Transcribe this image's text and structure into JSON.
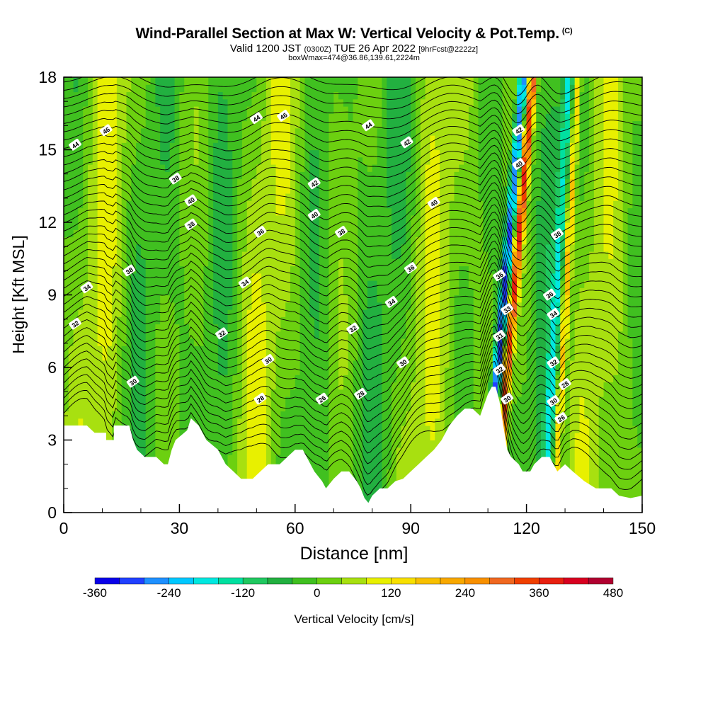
{
  "header": {
    "title": "Wind-Parallel Section at Max W: Vertical Velocity & Pot.Temp.",
    "copyright": "(C)",
    "valid_prefix": "Valid 1200 JST",
    "valid_utc": "(0300Z)",
    "valid_date": "TUE 26 Apr 2022",
    "forecast": "[9hrFcst@2222z]",
    "box_info": "boxWmax=474@36.86,139.61,2224m"
  },
  "chart_data": {
    "type": "heatmap",
    "xlabel": "Distance [nm]",
    "ylabel": "Height [Kft MSL]",
    "xlim": [
      0,
      150
    ],
    "ylim": [
      0,
      18
    ],
    "x_ticks": [
      "0",
      "30",
      "60",
      "90",
      "120",
      "150"
    ],
    "y_ticks": [
      "0",
      "3",
      "6",
      "9",
      "12",
      "15",
      "18"
    ],
    "terrain_kft": [
      [
        0,
        3.6
      ],
      [
        6,
        3.6
      ],
      [
        8,
        3.3
      ],
      [
        11,
        3.3
      ],
      [
        11,
        3.0
      ],
      [
        13,
        3.0
      ],
      [
        13,
        3.6
      ],
      [
        17,
        3.6
      ],
      [
        18,
        3.0
      ],
      [
        19,
        2.6
      ],
      [
        21,
        2.3
      ],
      [
        24,
        2.3
      ],
      [
        26,
        2.0
      ],
      [
        27,
        2.0
      ],
      [
        28,
        2.6
      ],
      [
        29,
        3.0
      ],
      [
        32,
        3.4
      ],
      [
        33,
        3.9
      ],
      [
        35,
        3.6
      ],
      [
        37,
        3.0
      ],
      [
        40,
        2.6
      ],
      [
        42,
        2.0
      ],
      [
        44,
        1.7
      ],
      [
        46,
        1.4
      ],
      [
        49,
        1.4
      ],
      [
        51,
        1.7
      ],
      [
        53,
        2.0
      ],
      [
        56,
        2.0
      ],
      [
        58,
        2.3
      ],
      [
        60,
        2.6
      ],
      [
        62,
        2.6
      ],
      [
        63,
        2.3
      ],
      [
        65,
        1.7
      ],
      [
        67,
        1.3
      ],
      [
        68,
        1.0
      ],
      [
        70,
        1.4
      ],
      [
        72,
        1.7
      ],
      [
        74,
        1.7
      ],
      [
        76,
        1.3
      ],
      [
        77,
        1.0
      ],
      [
        78,
        0.6
      ],
      [
        79,
        0.4
      ],
      [
        80,
        0.7
      ],
      [
        82,
        1.0
      ],
      [
        84,
        1.0
      ],
      [
        86,
        1.3
      ],
      [
        88,
        1.4
      ],
      [
        90,
        1.7
      ],
      [
        92,
        2.0
      ],
      [
        94,
        2.3
      ],
      [
        96,
        2.6
      ],
      [
        98,
        3.0
      ],
      [
        100,
        3.6
      ],
      [
        102,
        4.0
      ],
      [
        104,
        4.3
      ],
      [
        106,
        4.3
      ],
      [
        108,
        4.0
      ],
      [
        110,
        4.9
      ],
      [
        111,
        5.2
      ],
      [
        112,
        5.2
      ],
      [
        113,
        4.6
      ],
      [
        114,
        3.6
      ],
      [
        115,
        2.6
      ],
      [
        116,
        2.3
      ],
      [
        118,
        2.0
      ],
      [
        119,
        1.7
      ],
      [
        121,
        1.7
      ],
      [
        122,
        2.0
      ],
      [
        124,
        2.3
      ],
      [
        126,
        2.3
      ],
      [
        127,
        2.0
      ],
      [
        128,
        1.7
      ],
      [
        130,
        2.0
      ],
      [
        132,
        1.7
      ],
      [
        135,
        1.3
      ],
      [
        138,
        1.0
      ],
      [
        140,
        1.0
      ],
      [
        142,
        1.0
      ],
      [
        144,
        0.7
      ],
      [
        147,
        0.6
      ],
      [
        150,
        0.7
      ]
    ],
    "theta_levels": [
      26,
      28,
      30,
      32,
      34,
      36,
      38,
      40,
      42,
      44,
      46
    ],
    "colorbar": {
      "label": "Vertical Velocity [cm/s]",
      "tick_labels": [
        "-360",
        "-240",
        "-120",
        "0",
        "120",
        "240",
        "360",
        "480"
      ],
      "tick_values": [
        -360,
        -240,
        -120,
        0,
        120,
        240,
        360,
        480
      ],
      "min": -360,
      "max": 480,
      "step": 40,
      "colors": [
        "#0a00e8",
        "#2040ff",
        "#1e90ff",
        "#00c8ff",
        "#00e8e0",
        "#00e0a0",
        "#20c860",
        "#22b040",
        "#40c020",
        "#6cd010",
        "#a8e010",
        "#e8f000",
        "#f8e000",
        "#f8c000",
        "#f8a800",
        "#f89000",
        "#f06820",
        "#f04000",
        "#e82010",
        "#d80020",
        "#b00030",
        "#8c0050",
        "#6a1090",
        "#4c10a0",
        "#301890"
      ]
    },
    "contour_labels": [
      {
        "value": "46",
        "x": 11,
        "y": 15.8
      },
      {
        "value": "44",
        "x": 3,
        "y": 15.2
      },
      {
        "value": "46",
        "x": 57,
        "y": 16.4
      },
      {
        "value": "44",
        "x": 50,
        "y": 16.3
      },
      {
        "value": "44",
        "x": 79,
        "y": 16.0
      },
      {
        "value": "42",
        "x": 89,
        "y": 15.3
      },
      {
        "value": "42",
        "x": 118,
        "y": 15.8
      },
      {
        "value": "40",
        "x": 118,
        "y": 14.4
      },
      {
        "value": "38",
        "x": 29,
        "y": 13.8
      },
      {
        "value": "40",
        "x": 33,
        "y": 12.9
      },
      {
        "value": "38",
        "x": 33,
        "y": 11.9
      },
      {
        "value": "42",
        "x": 65,
        "y": 13.6
      },
      {
        "value": "40",
        "x": 65,
        "y": 12.3
      },
      {
        "value": "40",
        "x": 96,
        "y": 12.8
      },
      {
        "value": "36",
        "x": 51,
        "y": 11.6
      },
      {
        "value": "38",
        "x": 72,
        "y": 11.6
      },
      {
        "value": "38",
        "x": 128,
        "y": 11.5
      },
      {
        "value": "36",
        "x": 90,
        "y": 10.1
      },
      {
        "value": "36",
        "x": 113,
        "y": 9.8
      },
      {
        "value": "36",
        "x": 126,
        "y": 9.0
      },
      {
        "value": "38",
        "x": 17,
        "y": 10.0
      },
      {
        "value": "34",
        "x": 6,
        "y": 9.3
      },
      {
        "value": "34",
        "x": 47,
        "y": 9.5
      },
      {
        "value": "34",
        "x": 85,
        "y": 8.7
      },
      {
        "value": "33",
        "x": 115,
        "y": 8.4
      },
      {
        "value": "34",
        "x": 127,
        "y": 8.2
      },
      {
        "value": "32",
        "x": 3,
        "y": 7.8
      },
      {
        "value": "32",
        "x": 41,
        "y": 7.4
      },
      {
        "value": "32",
        "x": 75,
        "y": 7.6
      },
      {
        "value": "31",
        "x": 113,
        "y": 7.3
      },
      {
        "value": "30",
        "x": 53,
        "y": 6.3
      },
      {
        "value": "30",
        "x": 88,
        "y": 6.2
      },
      {
        "value": "32",
        "x": 127,
        "y": 6.2
      },
      {
        "value": "32",
        "x": 113,
        "y": 5.9
      },
      {
        "value": "30",
        "x": 18,
        "y": 5.4
      },
      {
        "value": "28",
        "x": 130,
        "y": 5.3
      },
      {
        "value": "28",
        "x": 51,
        "y": 4.7
      },
      {
        "value": "26",
        "x": 67,
        "y": 4.7
      },
      {
        "value": "28",
        "x": 77,
        "y": 4.9
      },
      {
        "value": "30",
        "x": 115,
        "y": 4.7
      },
      {
        "value": "30",
        "x": 127,
        "y": 4.6
      },
      {
        "value": "26",
        "x": 129,
        "y": 3.9
      }
    ]
  }
}
